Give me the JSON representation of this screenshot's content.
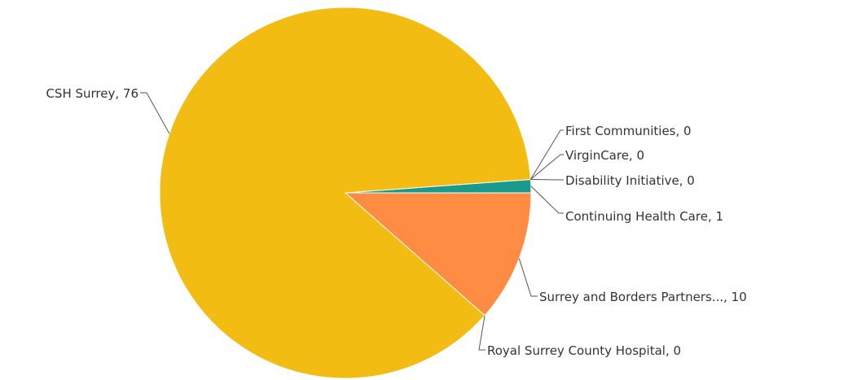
{
  "chart_data": {
    "type": "pie",
    "slices": [
      {
        "label": "First Communities",
        "value": 0,
        "display": "First Communities, 0",
        "color": "#2e8b57"
      },
      {
        "label": "VirginCare",
        "value": 0,
        "display": "VirginCare, 0",
        "color": "#7cb342"
      },
      {
        "label": "Disability Initiative",
        "value": 0,
        "display": "Disability Initiative, 0",
        "color": "#1e88e5"
      },
      {
        "label": "Continuing Health Care",
        "value": 1,
        "display": "Continuing Health Care, 1",
        "color": "#1a9a8a"
      },
      {
        "label": "Surrey and Borders Partners...",
        "value": 10,
        "display": "Surrey and Borders Partners..., 10",
        "color": "#ff8c42"
      },
      {
        "label": "Royal Surrey County Hospital",
        "value": 0,
        "display": "Royal Surrey County Hospital, 0",
        "color": "#e53935"
      },
      {
        "label": "CSH Surrey",
        "value": 76,
        "display": "CSH Surrey, 76",
        "color": "#f2bc12"
      }
    ]
  }
}
